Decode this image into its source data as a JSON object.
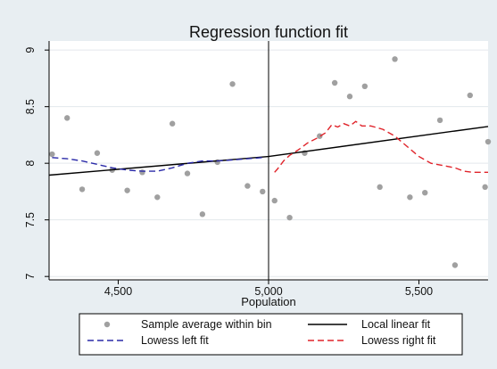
{
  "chart_data": {
    "type": "scatter",
    "title": "Regression function fit",
    "xlabel": "Population",
    "ylabel": "",
    "xlim": [
      4270,
      5730
    ],
    "ylim": [
      6.97,
      9.08
    ],
    "xticks": [
      4500,
      5000,
      5500
    ],
    "xtick_labels": [
      "4,500",
      "5,000",
      "5,500"
    ],
    "yticks": [
      7,
      7.5,
      8,
      8.5,
      9
    ],
    "ytick_labels": [
      "7",
      "7.5",
      "8",
      "8.5",
      "9"
    ],
    "cutoff": 5000,
    "grid": true,
    "legend_placement": "bottom",
    "series": [
      {
        "name": "Sample average within bin",
        "kind": "scatter",
        "color": "#a0a0a0",
        "points": [
          [
            4280,
            8.08
          ],
          [
            4330,
            8.4
          ],
          [
            4380,
            7.77
          ],
          [
            4430,
            8.09
          ],
          [
            4480,
            7.94
          ],
          [
            4530,
            7.76
          ],
          [
            4580,
            7.92
          ],
          [
            4630,
            7.7
          ],
          [
            4680,
            8.35
          ],
          [
            4730,
            7.91
          ],
          [
            4780,
            7.55
          ],
          [
            4830,
            8.01
          ],
          [
            4880,
            8.7
          ],
          [
            4930,
            7.8
          ],
          [
            4980,
            7.75
          ],
          [
            5020,
            7.67
          ],
          [
            5070,
            7.52
          ],
          [
            5120,
            8.09
          ],
          [
            5170,
            8.24
          ],
          [
            5220,
            8.71
          ],
          [
            5270,
            8.59
          ],
          [
            5320,
            8.68
          ],
          [
            5370,
            7.79
          ],
          [
            5420,
            8.92
          ],
          [
            5470,
            7.7
          ],
          [
            5520,
            7.74
          ],
          [
            5570,
            8.38
          ],
          [
            5620,
            7.1
          ],
          [
            5670,
            8.6
          ],
          [
            5720,
            7.79
          ],
          [
            5770,
            8.19
          ]
        ]
      },
      {
        "name": "Local linear fit",
        "kind": "line",
        "color": "#000000",
        "dash": "",
        "points": [
          [
            4270,
            7.895
          ],
          [
            5000,
            8.06
          ],
          [
            5730,
            8.325
          ]
        ]
      },
      {
        "name": "Lowess left fit",
        "kind": "line",
        "color": "#2a2aa8",
        "dash": "7,4",
        "points": [
          [
            4280,
            8.05
          ],
          [
            4330,
            8.04
          ],
          [
            4380,
            8.02
          ],
          [
            4430,
            7.99
          ],
          [
            4480,
            7.96
          ],
          [
            4530,
            7.94
          ],
          [
            4580,
            7.93
          ],
          [
            4630,
            7.93
          ],
          [
            4680,
            7.96
          ],
          [
            4730,
            8.0
          ],
          [
            4780,
            8.02
          ],
          [
            4830,
            8.02
          ],
          [
            4880,
            8.03
          ],
          [
            4930,
            8.04
          ],
          [
            4980,
            8.05
          ]
        ]
      },
      {
        "name": "Lowess right fit",
        "kind": "line",
        "color": "#e0232a",
        "dash": "7,4",
        "points": [
          [
            5020,
            7.92
          ],
          [
            5030,
            7.95
          ],
          [
            5050,
            8.02
          ],
          [
            5070,
            8.07
          ],
          [
            5100,
            8.12
          ],
          [
            5130,
            8.18
          ],
          [
            5160,
            8.22
          ],
          [
            5190,
            8.27
          ],
          [
            5210,
            8.34
          ],
          [
            5230,
            8.32
          ],
          [
            5250,
            8.35
          ],
          [
            5270,
            8.33
          ],
          [
            5290,
            8.37
          ],
          [
            5310,
            8.33
          ],
          [
            5340,
            8.33
          ],
          [
            5380,
            8.3
          ],
          [
            5420,
            8.24
          ],
          [
            5460,
            8.15
          ],
          [
            5500,
            8.06
          ],
          [
            5540,
            8.0
          ],
          [
            5580,
            7.98
          ],
          [
            5620,
            7.96
          ],
          [
            5650,
            7.93
          ],
          [
            5680,
            7.92
          ],
          [
            5730,
            7.92
          ]
        ]
      }
    ]
  },
  "legend": {
    "items": [
      {
        "label": "Sample average within bin",
        "symbol": "dot",
        "color": "#a0a0a0",
        "dash": ""
      },
      {
        "label": "Local linear fit",
        "symbol": "line",
        "color": "#000000",
        "dash": ""
      },
      {
        "label": "Lowess left fit",
        "symbol": "line",
        "color": "#2a2aa8",
        "dash": "7,4"
      },
      {
        "label": "Lowess right fit",
        "symbol": "line",
        "color": "#e0232a",
        "dash": "7,4"
      }
    ]
  },
  "colors": {
    "background": "#e8eef2",
    "plot_background": "#ffffff",
    "grid": "#e3e8ec"
  }
}
